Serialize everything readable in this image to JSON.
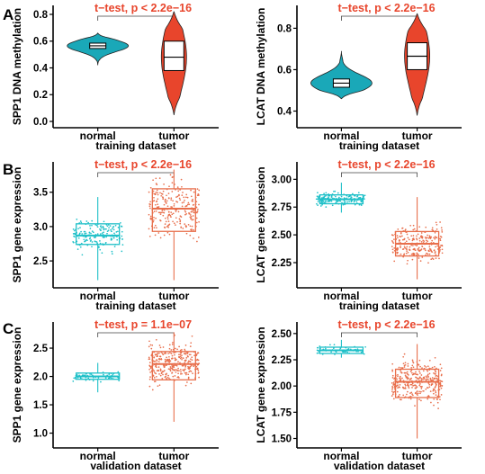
{
  "panel_labels": [
    "A",
    "B",
    "C"
  ],
  "colors": {
    "violin_normal": "#1aa8b8",
    "violin_tumor": "#e8452c",
    "box_normal": "#1fc0c8",
    "box_tumor": "#e86f4c",
    "test_text": "#e8452c"
  },
  "chart_data": [
    {
      "type": "violin",
      "panel": "A",
      "title": "t−test, p < 2.2e−16",
      "xlabel": "training dataset",
      "ylabel": "SPP1 DNA methylation",
      "ylim": [
        0.0,
        0.82
      ],
      "yticks": [
        0.0,
        0.2,
        0.4,
        0.6,
        0.8
      ],
      "ytick_labels": [
        "0.0",
        "0.2",
        "0.4",
        "0.6",
        "0.8"
      ],
      "categories": [
        "normal",
        "tumor"
      ],
      "series": [
        {
          "violin_min": 0.42,
          "violin_max": 0.66,
          "q1": 0.545,
          "median": 0.565,
          "q3": 0.585
        },
        {
          "violin_min": 0.05,
          "violin_max": 0.82,
          "q1": 0.38,
          "median": 0.48,
          "q3": 0.6
        }
      ]
    },
    {
      "type": "violin",
      "panel": "A",
      "title": "t−test, p < 2.2e−16",
      "xlabel": "training dataset",
      "ylabel": "LCAT DNA methylation",
      "ylim": [
        0.35,
        0.88
      ],
      "yticks": [
        0.4,
        0.6,
        0.8
      ],
      "ytick_labels": [
        "0.4",
        "0.6",
        "0.8"
      ],
      "categories": [
        "normal",
        "tumor"
      ],
      "series": [
        {
          "violin_min": 0.46,
          "violin_max": 0.69,
          "q1": 0.515,
          "median": 0.535,
          "q3": 0.555
        },
        {
          "violin_min": 0.38,
          "violin_max": 0.87,
          "q1": 0.6,
          "median": 0.665,
          "q3": 0.73
        }
      ]
    },
    {
      "type": "box",
      "panel": "B",
      "title": "t−test, p < 2.2e−16",
      "xlabel": "training dataset",
      "ylabel": "SPP1 gene expression",
      "ylim": [
        2.2,
        3.85
      ],
      "yticks": [
        2.5,
        3.0,
        3.5
      ],
      "ytick_labels": [
        "2.5",
        "3.0",
        "3.5"
      ],
      "categories": [
        "normal",
        "tumor"
      ],
      "series": [
        {
          "whisker_low": 2.22,
          "q1": 2.74,
          "median": 2.87,
          "q3": 3.04,
          "whisker_high": 3.43,
          "points_min": 2.2,
          "points_max": 3.7,
          "n_points": 170
        },
        {
          "whisker_low": 2.22,
          "q1": 2.93,
          "median": 3.26,
          "q3": 3.55,
          "whisker_high": 3.83,
          "points_min": 2.2,
          "points_max": 3.85,
          "n_points": 260
        }
      ]
    },
    {
      "type": "box",
      "panel": "B",
      "title": "t−test, p < 2.2e−16",
      "xlabel": "training dataset",
      "ylabel": "LCAT gene expression",
      "ylim": [
        2.08,
        3.1
      ],
      "yticks": [
        2.25,
        2.5,
        2.75,
        3.0
      ],
      "ytick_labels": [
        "2.25",
        "2.50",
        "2.75",
        "3.00"
      ],
      "categories": [
        "normal",
        "tumor"
      ],
      "series": [
        {
          "whisker_low": 2.7,
          "q1": 2.78,
          "median": 2.82,
          "q3": 2.86,
          "whisker_high": 2.97,
          "points_min": 2.55,
          "points_max": 3.05,
          "n_points": 160
        },
        {
          "whisker_low": 2.1,
          "q1": 2.31,
          "median": 2.42,
          "q3": 2.53,
          "whisker_high": 2.84,
          "points_min": 2.1,
          "points_max": 2.87,
          "n_points": 260
        }
      ]
    },
    {
      "type": "box",
      "panel": "C",
      "title": "t−test, p = 1.1e−07",
      "xlabel": "validation dataset",
      "ylabel": "SPP1 gene expression",
      "ylim": [
        0.85,
        2.85
      ],
      "yticks": [
        1.0,
        1.5,
        2.0,
        2.5
      ],
      "ytick_labels": [
        "1.0",
        "1.5",
        "2.0",
        "2.5"
      ],
      "categories": [
        "normal",
        "tumor"
      ],
      "series": [
        {
          "whisker_low": 1.72,
          "q1": 1.95,
          "median": 2.0,
          "q3": 2.06,
          "whisker_high": 2.24,
          "points_min": 1.68,
          "points_max": 2.32,
          "n_points": 60
        },
        {
          "whisker_low": 1.2,
          "q1": 1.94,
          "median": 2.22,
          "q3": 2.44,
          "whisker_high": 2.78,
          "points_min": 0.9,
          "points_max": 2.82,
          "n_points": 330
        }
      ]
    },
    {
      "type": "box",
      "panel": "C",
      "title": "t−test, p < 2.2e−16",
      "xlabel": "validation dataset",
      "ylabel": "LCAT gene expression",
      "ylim": [
        1.47,
        2.55
      ],
      "yticks": [
        1.5,
        1.75,
        2.0,
        2.25,
        2.5
      ],
      "ytick_labels": [
        "1.50",
        "1.75",
        "2.00",
        "2.25",
        "2.50"
      ],
      "categories": [
        "normal",
        "tumor"
      ],
      "series": [
        {
          "whisker_low": 2.27,
          "q1": 2.31,
          "median": 2.34,
          "q3": 2.37,
          "whisker_high": 2.44,
          "points_min": 2.22,
          "points_max": 2.48,
          "n_points": 60
        },
        {
          "whisker_low": 1.5,
          "q1": 1.89,
          "median": 2.04,
          "q3": 2.16,
          "whisker_high": 2.4,
          "points_min": 1.48,
          "points_max": 2.42,
          "n_points": 330
        }
      ]
    }
  ]
}
